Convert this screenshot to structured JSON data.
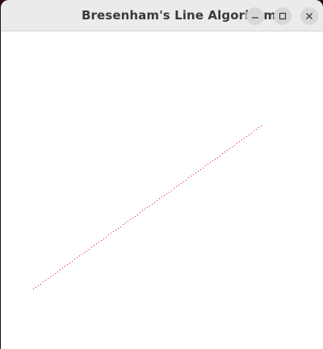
{
  "window": {
    "title": "Bresenham's Line Algorithm",
    "buttons": {
      "minimize_icon": "minimize-icon",
      "maximize_icon": "maximize-icon",
      "close_icon": "close-icon"
    }
  },
  "drawing": {
    "algorithm": "Bresenham",
    "line_color": "#e02020",
    "style": "dotted"
  }
}
